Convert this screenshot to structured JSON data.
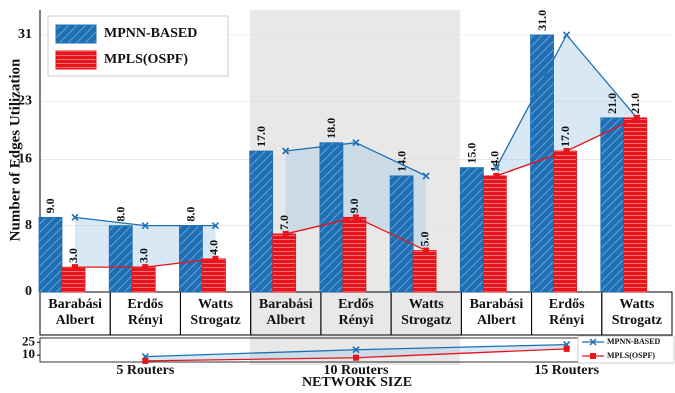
{
  "chart_data": [
    {
      "type": "bar",
      "y_label": "Number of Edges Utilization",
      "categories": [
        [
          "Barabási",
          "Albert"
        ],
        [
          "Erdős",
          "Rényi"
        ],
        [
          "Watts",
          "Strogatz"
        ],
        [
          "Barabási",
          "Albert"
        ],
        [
          "Erdős",
          "Rényi"
        ],
        [
          "Watts",
          "Strogatz"
        ],
        [
          "Barabási",
          "Albert"
        ],
        [
          "Erdős",
          "Rényi"
        ],
        [
          "Watts",
          "Strogatz"
        ]
      ],
      "series": [
        {
          "name": "MPNN-BASED",
          "color": "#1f6fb4",
          "values": [
            9,
            8,
            8,
            17,
            18,
            14,
            15,
            31,
            21
          ],
          "value_labels": [
            "9.0",
            "8.0",
            "8.0",
            "17.0",
            "18.0",
            "14.0",
            "15.0",
            "31.0",
            "21.0"
          ]
        },
        {
          "name": "MPLS(OSPF)",
          "color": "#e8141c",
          "values": [
            3,
            3,
            4,
            7,
            9,
            5,
            14,
            17,
            21
          ],
          "value_labels": [
            "3.0",
            "3.0",
            "4.0",
            "7.0",
            "9.0",
            "5.0",
            "14.0",
            "17.0",
            "21.0"
          ]
        }
      ],
      "ylim": [
        0,
        34
      ],
      "yticks": [
        0,
        8,
        16,
        23,
        31
      ],
      "grid": true,
      "legend": "upper left"
    },
    {
      "type": "line",
      "x_label": "NETWORK SIZE",
      "categories": [
        "5 Routers",
        "10 Routers",
        "15 Routers"
      ],
      "series": [
        {
          "name": "MPNN-BASED",
          "color": "#1f6fb4",
          "values": [
            8.3,
            16.3,
            22.3
          ]
        },
        {
          "name": "MPLS(OSPF)",
          "color": "#e8141c",
          "values": [
            3.3,
            7,
            17.3
          ]
        }
      ],
      "ylim": [
        2,
        30
      ],
      "yticks": [
        10,
        25
      ],
      "legend": "lower right"
    }
  ]
}
